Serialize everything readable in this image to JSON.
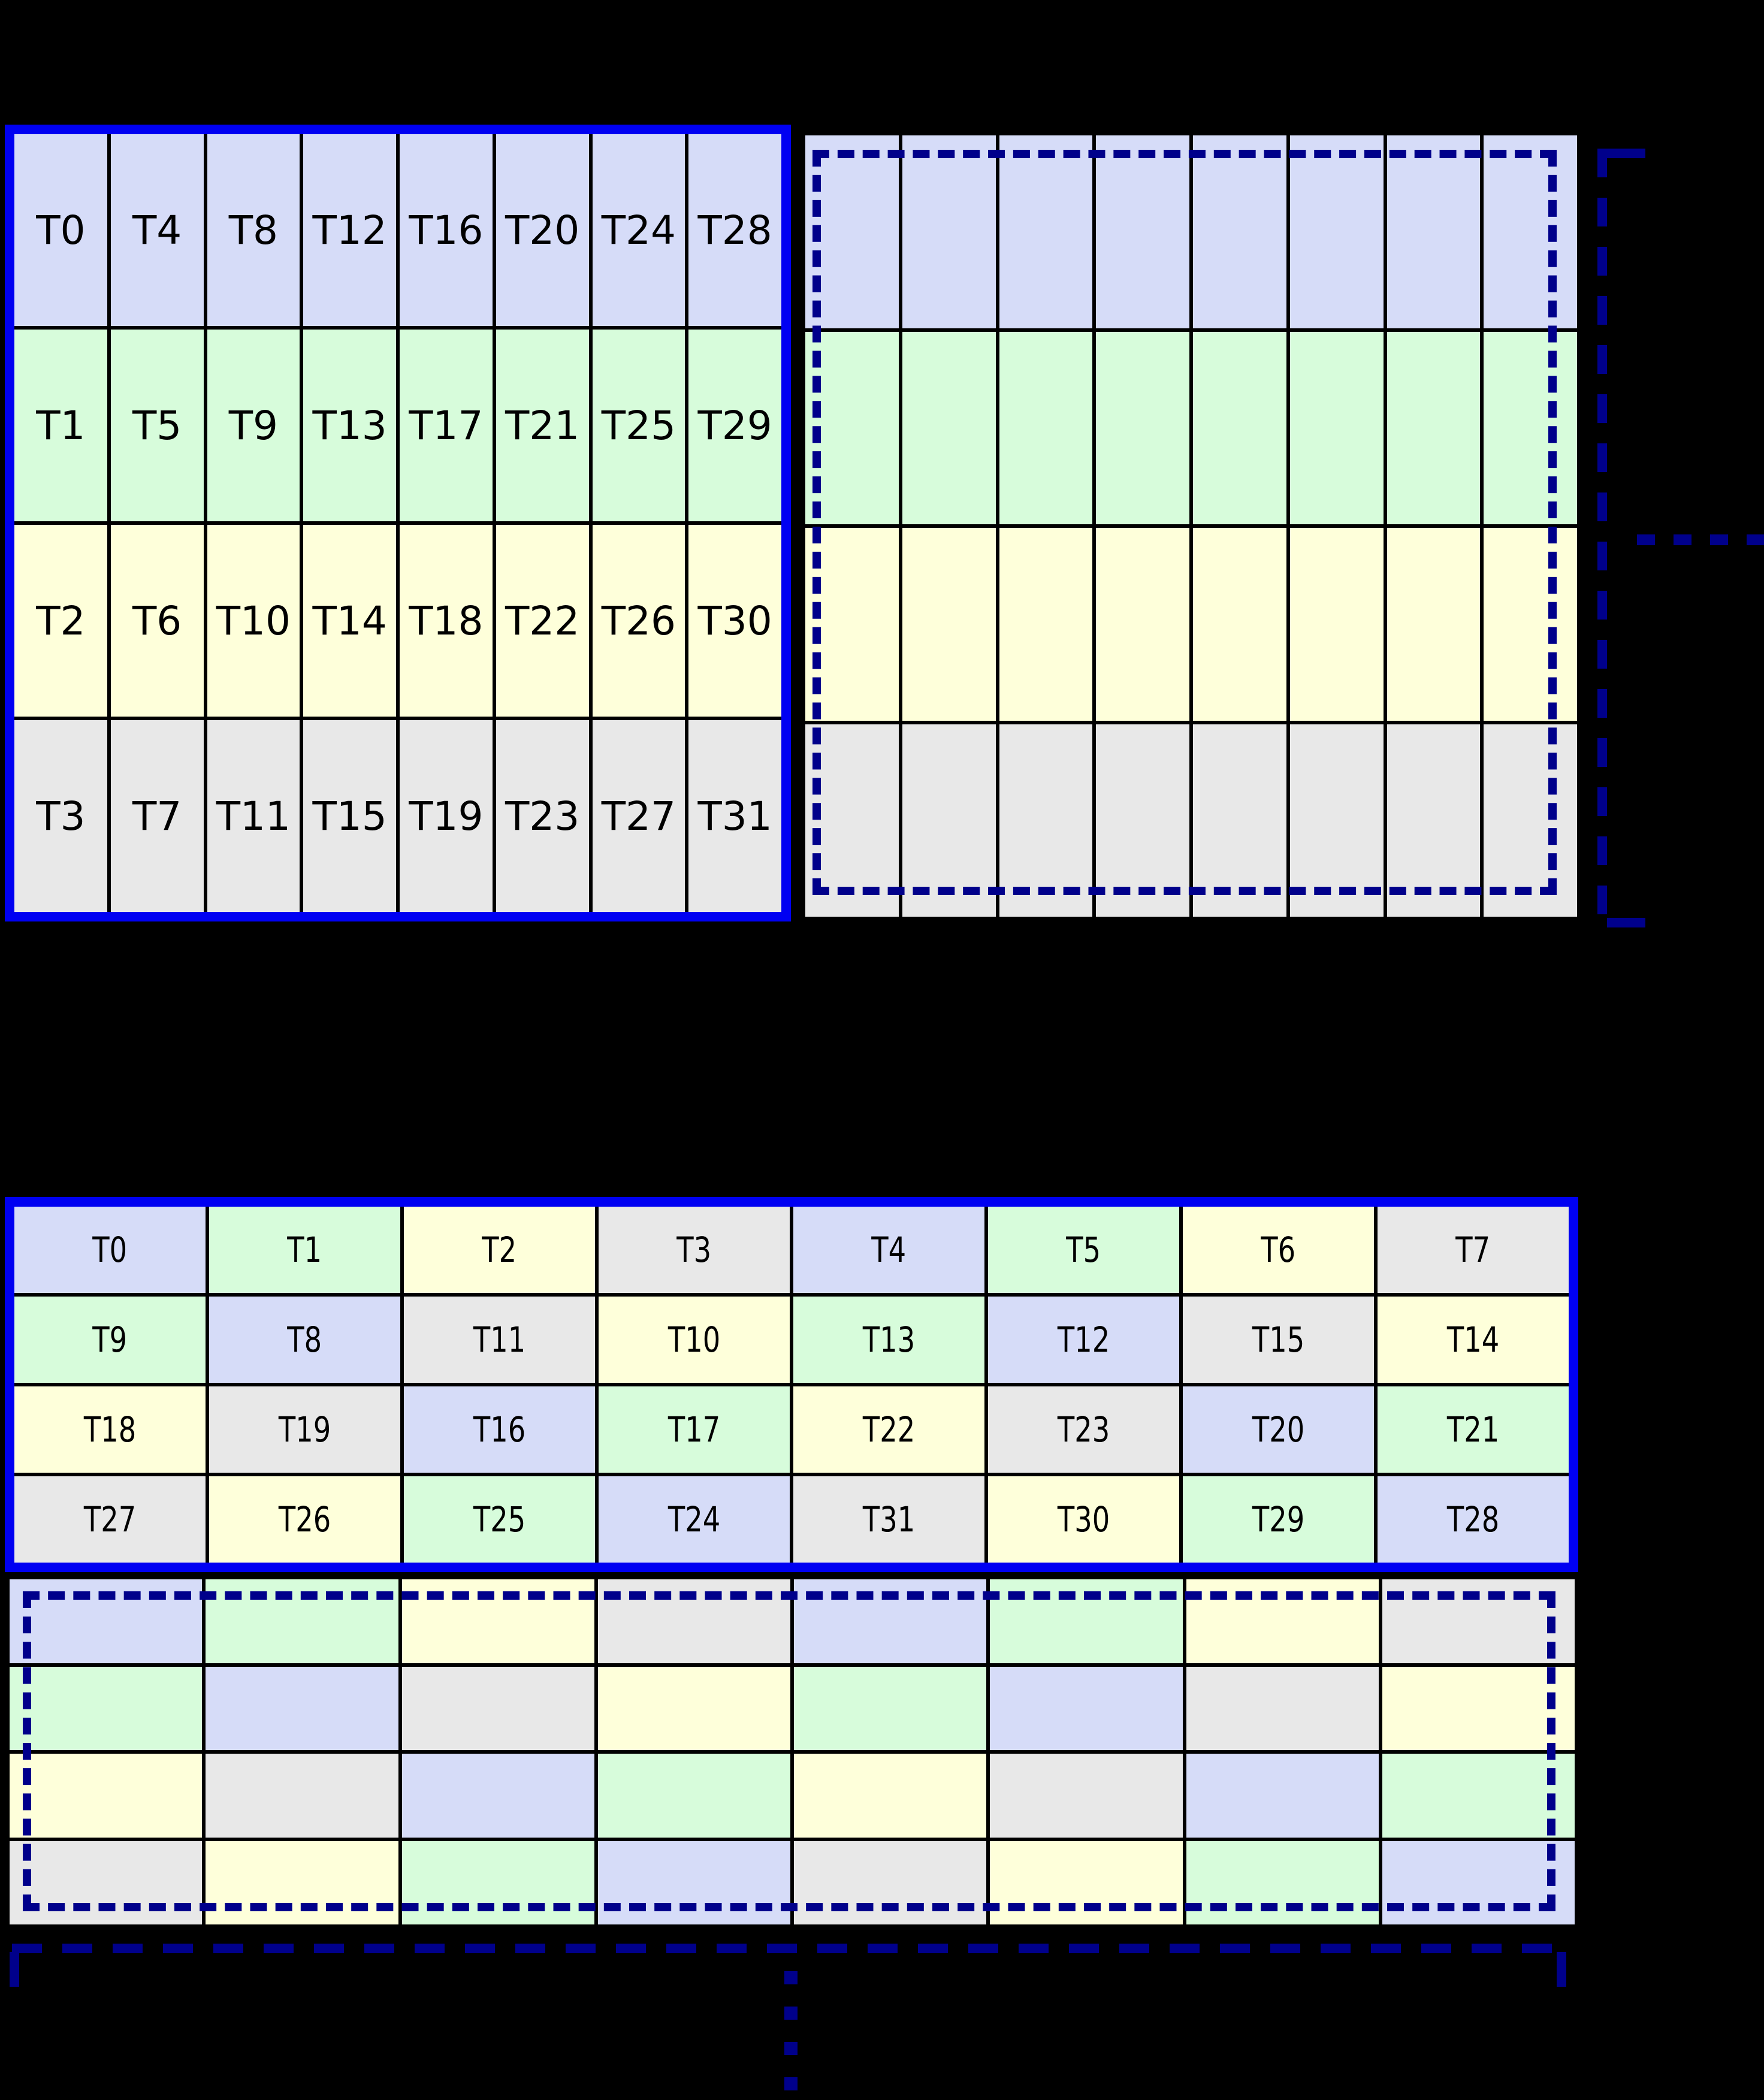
{
  "colors": {
    "cell_blue": "#d6dcf8",
    "cell_green": "#d7fcdb",
    "cell_yellow": "#feffda",
    "cell_gray": "#e8e8e8",
    "solid_border_blue": "#0000f2",
    "dashed_navy": "#00008b",
    "grid_line_black": "#000000",
    "background": "#000000"
  },
  "figure_top": {
    "labeled_grid": {
      "rows": [
        {
          "color": "blue",
          "labels": [
            "T0",
            "T4",
            "T8",
            "T12",
            "T16",
            "T20",
            "T24",
            "T28"
          ]
        },
        {
          "color": "green",
          "labels": [
            "T1",
            "T5",
            "T9",
            "T13",
            "T17",
            "T21",
            "T25",
            "T29"
          ]
        },
        {
          "color": "yellow",
          "labels": [
            "T2",
            "T6",
            "T10",
            "T14",
            "T18",
            "T22",
            "T26",
            "T30"
          ]
        },
        {
          "color": "gray",
          "labels": [
            "T3",
            "T7",
            "T11",
            "T15",
            "T19",
            "T23",
            "T27",
            "T31"
          ]
        }
      ]
    },
    "ghost_grid": {
      "cols": 8,
      "row_colors": [
        "blue",
        "green",
        "yellow",
        "gray"
      ]
    },
    "continuation": "horizontal-dashed-bracket-with-ellipsis"
  },
  "figure_bottom": {
    "labeled_grid": {
      "rows": [
        [
          {
            "label": "T0",
            "color": "blue"
          },
          {
            "label": "T1",
            "color": "green"
          },
          {
            "label": "T2",
            "color": "yellow"
          },
          {
            "label": "T3",
            "color": "gray"
          },
          {
            "label": "T4",
            "color": "blue"
          },
          {
            "label": "T5",
            "color": "green"
          },
          {
            "label": "T6",
            "color": "yellow"
          },
          {
            "label": "T7",
            "color": "gray"
          }
        ],
        [
          {
            "label": "T9",
            "color": "green"
          },
          {
            "label": "T8",
            "color": "blue"
          },
          {
            "label": "T11",
            "color": "gray"
          },
          {
            "label": "T10",
            "color": "yellow"
          },
          {
            "label": "T13",
            "color": "green"
          },
          {
            "label": "T12",
            "color": "blue"
          },
          {
            "label": "T15",
            "color": "gray"
          },
          {
            "label": "T14",
            "color": "yellow"
          }
        ],
        [
          {
            "label": "T18",
            "color": "yellow"
          },
          {
            "label": "T19",
            "color": "gray"
          },
          {
            "label": "T16",
            "color": "blue"
          },
          {
            "label": "T17",
            "color": "green"
          },
          {
            "label": "T22",
            "color": "yellow"
          },
          {
            "label": "T23",
            "color": "gray"
          },
          {
            "label": "T20",
            "color": "blue"
          },
          {
            "label": "T21",
            "color": "green"
          }
        ],
        [
          {
            "label": "T27",
            "color": "gray"
          },
          {
            "label": "T26",
            "color": "yellow"
          },
          {
            "label": "T25",
            "color": "green"
          },
          {
            "label": "T24",
            "color": "blue"
          },
          {
            "label": "T31",
            "color": "gray"
          },
          {
            "label": "T30",
            "color": "yellow"
          },
          {
            "label": "T29",
            "color": "green"
          },
          {
            "label": "T28",
            "color": "blue"
          }
        ]
      ]
    },
    "ghost_grid": {
      "rows": [
        [
          "blue",
          "green",
          "yellow",
          "gray",
          "blue",
          "green",
          "yellow",
          "gray"
        ],
        [
          "green",
          "blue",
          "gray",
          "yellow",
          "green",
          "blue",
          "gray",
          "yellow"
        ],
        [
          "yellow",
          "gray",
          "blue",
          "green",
          "yellow",
          "gray",
          "blue",
          "green"
        ],
        [
          "gray",
          "yellow",
          "green",
          "blue",
          "gray",
          "yellow",
          "green",
          "blue"
        ]
      ]
    },
    "continuation": "vertical-ellipsis-below-dashed-bracket"
  }
}
